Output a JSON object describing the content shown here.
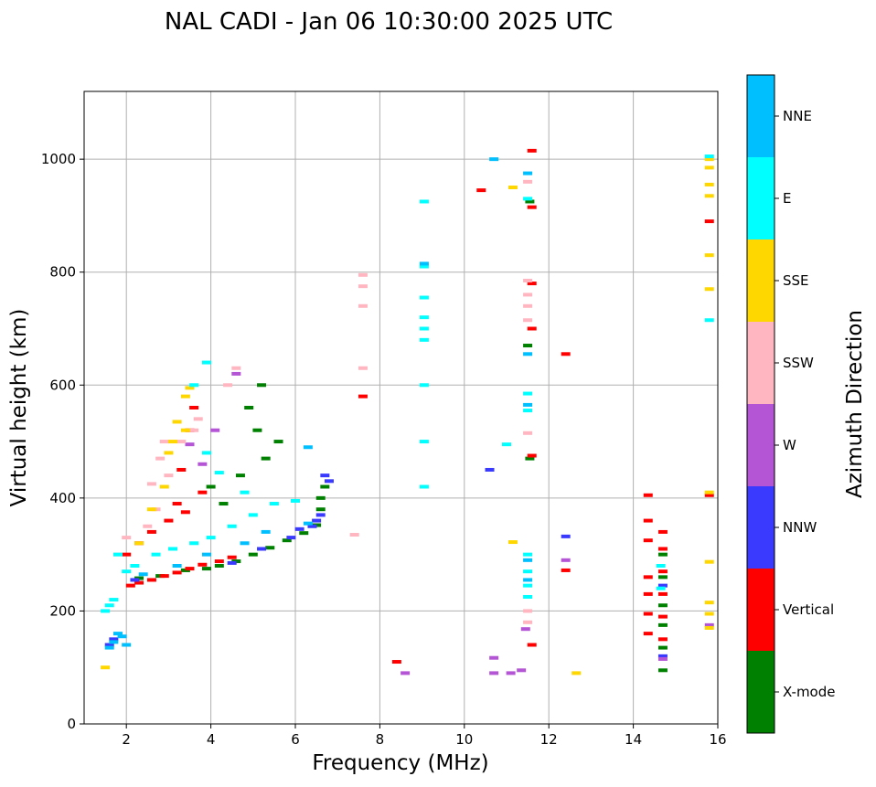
{
  "chart_data": {
    "type": "scatter",
    "title": "NAL CADI - Jan 06 10:30:00 2025 UTC",
    "xlabel": "Frequency (MHz)",
    "ylabel": "Virtual height (km)",
    "xlim": [
      1,
      16
    ],
    "ylim": [
      0,
      1120
    ],
    "xticks": [
      2,
      4,
      6,
      8,
      10,
      12,
      14,
      16
    ],
    "yticks": [
      0,
      200,
      400,
      600,
      800,
      1000
    ],
    "grid": true,
    "colorbar": {
      "label": "Azimuth Direction",
      "categories": [
        "X-mode",
        "Vertical",
        "NNW",
        "W",
        "SSW",
        "SSE",
        "E",
        "NNE"
      ],
      "colors": [
        "#008000",
        "#ff0000",
        "#3a3aff",
        "#b455d6",
        "#ffb6c1",
        "#ffd700",
        "#00ffff",
        "#00bfff"
      ]
    },
    "series": [
      {
        "name": "X-mode",
        "points": [
          [
            2.3,
            258
          ],
          [
            2.8,
            262
          ],
          [
            3.4,
            272
          ],
          [
            3.9,
            275
          ],
          [
            4.2,
            280
          ],
          [
            4.6,
            288
          ],
          [
            5.0,
            300
          ],
          [
            5.4,
            312
          ],
          [
            5.8,
            325
          ],
          [
            6.2,
            338
          ],
          [
            6.5,
            352
          ],
          [
            6.6,
            380
          ],
          [
            6.6,
            400
          ],
          [
            6.7,
            420
          ],
          [
            4.3,
            390
          ],
          [
            4.0,
            420
          ],
          [
            4.7,
            440
          ],
          [
            5.3,
            470
          ],
          [
            5.6,
            500
          ],
          [
            5.1,
            520
          ],
          [
            4.9,
            560
          ],
          [
            5.2,
            600
          ],
          [
            11.55,
            470
          ],
          [
            11.55,
            925
          ],
          [
            11.5,
            670
          ],
          [
            14.7,
            95
          ],
          [
            14.7,
            135
          ],
          [
            14.7,
            175
          ],
          [
            14.7,
            210
          ],
          [
            14.7,
            260
          ],
          [
            14.7,
            300
          ]
        ]
      },
      {
        "name": "Vertical",
        "points": [
          [
            2.1,
            245
          ],
          [
            2.3,
            250
          ],
          [
            2.6,
            255
          ],
          [
            2.9,
            262
          ],
          [
            3.2,
            268
          ],
          [
            3.5,
            275
          ],
          [
            3.8,
            282
          ],
          [
            4.2,
            288
          ],
          [
            4.5,
            295
          ],
          [
            2.0,
            300
          ],
          [
            2.3,
            320
          ],
          [
            2.6,
            340
          ],
          [
            3.0,
            360
          ],
          [
            3.4,
            375
          ],
          [
            3.2,
            390
          ],
          [
            3.8,
            410
          ],
          [
            3.3,
            450
          ],
          [
            3.5,
            520
          ],
          [
            3.6,
            560
          ],
          [
            7.6,
            580
          ],
          [
            8.4,
            110
          ],
          [
            10.4,
            945
          ],
          [
            11.6,
            1015
          ],
          [
            11.6,
            915
          ],
          [
            11.6,
            780
          ],
          [
            11.6,
            700
          ],
          [
            11.6,
            475
          ],
          [
            11.6,
            140
          ],
          [
            12.4,
            655
          ],
          [
            12.4,
            272
          ],
          [
            14.35,
            405
          ],
          [
            14.35,
            360
          ],
          [
            14.35,
            325
          ],
          [
            14.35,
            260
          ],
          [
            14.35,
            230
          ],
          [
            14.35,
            195
          ],
          [
            14.35,
            160
          ],
          [
            14.7,
            340
          ],
          [
            14.7,
            310
          ],
          [
            14.7,
            270
          ],
          [
            14.7,
            230
          ],
          [
            14.7,
            190
          ],
          [
            14.7,
            150
          ],
          [
            15.8,
            890
          ],
          [
            15.8,
            405
          ]
        ]
      },
      {
        "name": "NNW",
        "points": [
          [
            1.6,
            140
          ],
          [
            1.7,
            150
          ],
          [
            2.2,
            255
          ],
          [
            4.5,
            285
          ],
          [
            5.2,
            310
          ],
          [
            5.9,
            330
          ],
          [
            6.1,
            345
          ],
          [
            6.4,
            350
          ],
          [
            6.5,
            360
          ],
          [
            6.6,
            370
          ],
          [
            6.7,
            440
          ],
          [
            6.8,
            430
          ],
          [
            10.6,
            450
          ],
          [
            12.4,
            332
          ],
          [
            14.7,
            120
          ],
          [
            14.7,
            245
          ]
        ]
      },
      {
        "name": "W",
        "points": [
          [
            3.5,
            495
          ],
          [
            3.8,
            460
          ],
          [
            4.1,
            520
          ],
          [
            4.6,
            620
          ],
          [
            8.6,
            90
          ],
          [
            10.7,
            117
          ],
          [
            10.7,
            90
          ],
          [
            11.1,
            90
          ],
          [
            11.35,
            95
          ],
          [
            11.45,
            168
          ],
          [
            12.4,
            290
          ],
          [
            14.7,
            115
          ],
          [
            15.8,
            175
          ]
        ]
      },
      {
        "name": "SSW",
        "points": [
          [
            1.8,
            300
          ],
          [
            2.0,
            330
          ],
          [
            2.5,
            350
          ],
          [
            2.7,
            380
          ],
          [
            2.6,
            425
          ],
          [
            2.8,
            470
          ],
          [
            2.9,
            500
          ],
          [
            3.3,
            500
          ],
          [
            3.6,
            520
          ],
          [
            3.7,
            540
          ],
          [
            3.0,
            440
          ],
          [
            4.4,
            600
          ],
          [
            4.6,
            630
          ],
          [
            7.4,
            335
          ],
          [
            7.6,
            795
          ],
          [
            7.6,
            775
          ],
          [
            7.6,
            740
          ],
          [
            7.6,
            630
          ],
          [
            11.5,
            785
          ],
          [
            11.5,
            760
          ],
          [
            11.5,
            740
          ],
          [
            11.5,
            715
          ],
          [
            11.5,
            515
          ],
          [
            11.5,
            200
          ],
          [
            11.5,
            180
          ],
          [
            11.5,
            960
          ]
        ]
      },
      {
        "name": "SSE",
        "points": [
          [
            1.5,
            100
          ],
          [
            2.3,
            320
          ],
          [
            2.6,
            380
          ],
          [
            2.9,
            420
          ],
          [
            3.0,
            480
          ],
          [
            3.1,
            500
          ],
          [
            3.2,
            535
          ],
          [
            3.4,
            520
          ],
          [
            3.5,
            595
          ],
          [
            3.4,
            580
          ],
          [
            11.15,
            950
          ],
          [
            11.15,
            322
          ],
          [
            12.65,
            90
          ],
          [
            15.8,
            1000
          ],
          [
            15.8,
            985
          ],
          [
            15.8,
            955
          ],
          [
            15.8,
            935
          ],
          [
            15.8,
            830
          ],
          [
            15.8,
            770
          ],
          [
            15.8,
            410
          ],
          [
            15.8,
            287
          ],
          [
            15.8,
            215
          ],
          [
            15.8,
            195
          ],
          [
            15.8,
            170
          ]
        ]
      },
      {
        "name": "E",
        "points": [
          [
            1.5,
            200
          ],
          [
            1.6,
            210
          ],
          [
            1.7,
            220
          ],
          [
            1.8,
            300
          ],
          [
            2.0,
            270
          ],
          [
            2.2,
            280
          ],
          [
            2.7,
            300
          ],
          [
            3.1,
            310
          ],
          [
            3.6,
            320
          ],
          [
            4.0,
            330
          ],
          [
            4.5,
            350
          ],
          [
            5.0,
            370
          ],
          [
            5.5,
            390
          ],
          [
            6.0,
            395
          ],
          [
            4.8,
            410
          ],
          [
            4.2,
            445
          ],
          [
            3.9,
            480
          ],
          [
            3.6,
            600
          ],
          [
            3.9,
            640
          ],
          [
            9.05,
            925
          ],
          [
            9.05,
            810
          ],
          [
            9.05,
            755
          ],
          [
            9.05,
            720
          ],
          [
            9.05,
            700
          ],
          [
            9.05,
            680
          ],
          [
            9.05,
            600
          ],
          [
            9.05,
            500
          ],
          [
            9.05,
            420
          ],
          [
            11.5,
            930
          ],
          [
            11.5,
            585
          ],
          [
            11.5,
            555
          ],
          [
            11.5,
            300
          ],
          [
            11.5,
            270
          ],
          [
            11.5,
            245
          ],
          [
            11.5,
            225
          ],
          [
            11.0,
            495
          ],
          [
            14.65,
            240
          ],
          [
            14.65,
            280
          ],
          [
            15.8,
            1005
          ],
          [
            15.8,
            715
          ]
        ]
      },
      {
        "name": "NNE",
        "points": [
          [
            1.6,
            135
          ],
          [
            1.7,
            145
          ],
          [
            1.8,
            160
          ],
          [
            1.9,
            155
          ],
          [
            2.0,
            140
          ],
          [
            2.4,
            265
          ],
          [
            3.2,
            280
          ],
          [
            3.9,
            300
          ],
          [
            4.8,
            320
          ],
          [
            5.3,
            340
          ],
          [
            6.3,
            355
          ],
          [
            6.3,
            490
          ],
          [
            9.05,
            815
          ],
          [
            10.7,
            1000
          ],
          [
            11.5,
            975
          ],
          [
            11.5,
            655
          ],
          [
            11.5,
            565
          ],
          [
            11.5,
            290
          ],
          [
            11.5,
            255
          ]
        ]
      }
    ]
  }
}
